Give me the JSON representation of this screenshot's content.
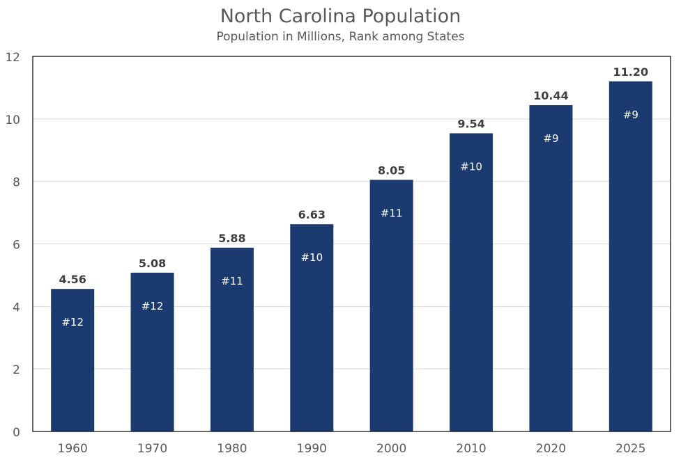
{
  "chart_data": {
    "type": "bar",
    "title": "North Carolina Population",
    "subtitle": "Population in Millions, Rank among States",
    "xlabel": "",
    "ylabel": "",
    "categories": [
      "1960",
      "1970",
      "1980",
      "1990",
      "2000",
      "2010",
      "2020",
      "2025"
    ],
    "values": [
      4.56,
      5.08,
      5.88,
      6.63,
      8.05,
      9.54,
      10.44,
      11.2
    ],
    "value_labels": [
      "4.56",
      "5.08",
      "5.88",
      "6.63",
      "8.05",
      "9.54",
      "10.44",
      "11.20"
    ],
    "rank_labels": [
      "#12",
      "#12",
      "#11",
      "#10",
      "#11",
      "#10",
      "#9",
      "#9"
    ],
    "ylim": [
      0,
      12
    ],
    "yticks": [
      0,
      2,
      4,
      6,
      8,
      10,
      12
    ],
    "grid": true,
    "legend": "none",
    "colors": {
      "bar": "#1b3a6f",
      "value_label": "#404040",
      "rank_label": "#ffffff",
      "axis_text": "#595959",
      "gridline": "#d9d9d9",
      "frame": "#000000"
    }
  }
}
